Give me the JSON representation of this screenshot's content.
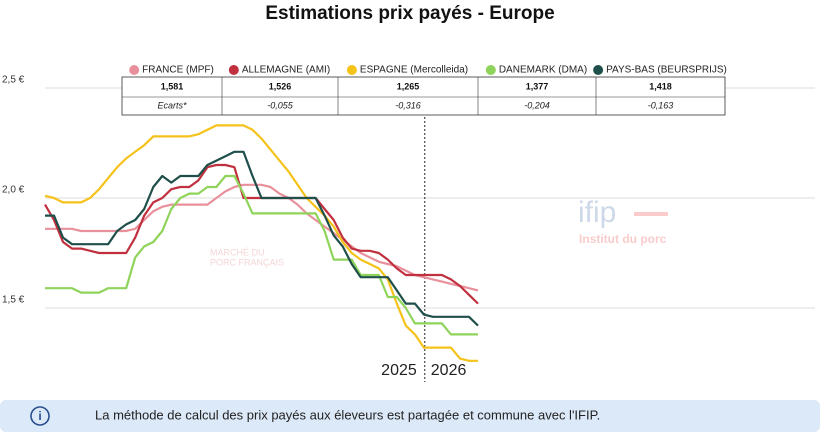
{
  "chart_data": {
    "type": "line",
    "title": "Estimations prix payés - Europe",
    "categories": [
      null,
      null,
      null,
      null,
      null,
      null,
      null,
      null,
      null,
      null,
      null,
      null,
      null,
      null,
      null,
      null,
      null,
      null,
      null,
      null,
      null,
      null,
      null,
      null,
      null,
      null,
      null,
      null,
      null,
      null,
      null,
      null,
      null,
      null,
      null,
      null,
      null,
      null,
      null,
      null,
      null,
      null,
      null,
      null,
      null,
      null,
      null,
      null,
      null
    ],
    "series": [
      {
        "name": "FRANCE (MPF)",
        "color": "#e8909c",
        "values": [
          1.86,
          1.86,
          1.86,
          1.86,
          1.85,
          1.85,
          1.85,
          1.85,
          1.85,
          1.85,
          1.86,
          1.9,
          1.94,
          1.96,
          1.97,
          1.97,
          1.97,
          1.97,
          1.97,
          2.0,
          2.03,
          2.05,
          2.06,
          2.06,
          2.06,
          2.05,
          2.02,
          2.0,
          1.97,
          1.93,
          1.9,
          1.87,
          1.84,
          1.81,
          1.78,
          1.75,
          1.73,
          1.71,
          1.7,
          1.69,
          1.67,
          1.65,
          1.64,
          1.63,
          1.62,
          1.61,
          1.6,
          1.59,
          1.58
        ]
      },
      {
        "name": "ALLEMAGNE (AMI)",
        "color": "#c0303f",
        "values": [
          1.97,
          1.9,
          1.8,
          1.77,
          1.77,
          1.76,
          1.75,
          1.75,
          1.75,
          1.75,
          1.82,
          1.92,
          1.98,
          2.0,
          2.04,
          2.05,
          2.05,
          2.08,
          2.14,
          2.15,
          2.15,
          2.14,
          2.0,
          2.0,
          2.0,
          2.0,
          2.0,
          2.0,
          2.0,
          2.0,
          2.0,
          1.95,
          1.9,
          1.82,
          1.77,
          1.76,
          1.76,
          1.75,
          1.72,
          1.68,
          1.65,
          1.65,
          1.65,
          1.65,
          1.65,
          1.63,
          1.6,
          1.56,
          1.52
        ]
      },
      {
        "name": "ESPAGNE (Mercolleida)",
        "color": "#f5c21a",
        "values": [
          2.01,
          2.0,
          1.98,
          1.98,
          1.98,
          2.0,
          2.04,
          2.09,
          2.14,
          2.18,
          2.21,
          2.24,
          2.28,
          2.28,
          2.28,
          2.28,
          2.28,
          2.29,
          2.31,
          2.33,
          2.33,
          2.33,
          2.33,
          2.31,
          2.27,
          2.22,
          2.17,
          2.12,
          2.06,
          2.0,
          1.96,
          1.92,
          1.87,
          1.8,
          1.75,
          1.72,
          1.7,
          1.68,
          1.63,
          1.52,
          1.42,
          1.38,
          1.32,
          1.32,
          1.32,
          1.32,
          1.27,
          1.26,
          1.26
        ]
      },
      {
        "name": "DANEMARK (DMA)",
        "color": "#8fd45a",
        "values": [
          1.59,
          1.59,
          1.59,
          1.59,
          1.57,
          1.57,
          1.57,
          1.59,
          1.59,
          1.59,
          1.73,
          1.78,
          1.8,
          1.85,
          1.95,
          2.0,
          2.02,
          2.02,
          2.05,
          2.05,
          2.1,
          2.1,
          2.02,
          1.93,
          1.93,
          1.93,
          1.93,
          1.93,
          1.93,
          1.93,
          1.93,
          1.85,
          1.72,
          1.72,
          1.72,
          1.65,
          1.65,
          1.65,
          1.55,
          1.55,
          1.5,
          1.43,
          1.43,
          1.43,
          1.43,
          1.38,
          1.38,
          1.38,
          1.38
        ]
      },
      {
        "name": "PAYS-BAS (BEURSPRIJS)",
        "color": "#1f4f4a",
        "values": [
          1.92,
          1.92,
          1.82,
          1.79,
          1.79,
          1.79,
          1.79,
          1.79,
          1.85,
          1.88,
          1.9,
          1.95,
          2.05,
          2.1,
          2.07,
          2.1,
          2.1,
          2.1,
          2.15,
          2.17,
          2.19,
          2.21,
          2.21,
          2.1,
          2.0,
          2.0,
          2.0,
          2.0,
          2.0,
          2.0,
          2.0,
          1.92,
          1.83,
          1.78,
          1.7,
          1.64,
          1.64,
          1.64,
          1.64,
          1.58,
          1.52,
          1.52,
          1.47,
          1.46,
          1.46,
          1.46,
          1.46,
          1.46,
          1.42
        ]
      }
    ],
    "ylim": [
      1.25,
      2.6
    ],
    "yticks": [
      {
        "value": 1.5,
        "label": "1,5 €"
      },
      {
        "value": 2.0,
        "label": "2,0 €"
      },
      {
        "value": 2.5,
        "label": "2,5 €"
      }
    ],
    "grid": true,
    "legend_table": {
      "prices": [
        "1,581",
        "1,526",
        "1,265",
        "1,377",
        "1,418"
      ],
      "gap_label": "Ecarts*",
      "gaps": [
        null,
        "-0,055",
        "-0,316",
        "-0,204",
        "-0,163"
      ]
    },
    "year_boundary": 42.1,
    "annotations": [
      "2025",
      "2026"
    ],
    "watermarks": [
      "MARCHÉ DU",
      "PORC FRANÇAIS",
      "ifip",
      "Institut du porc"
    ],
    "footnote": "La méthode de calcul des prix payés aux éleveurs est partagée et commune avec l'IFIP."
  }
}
